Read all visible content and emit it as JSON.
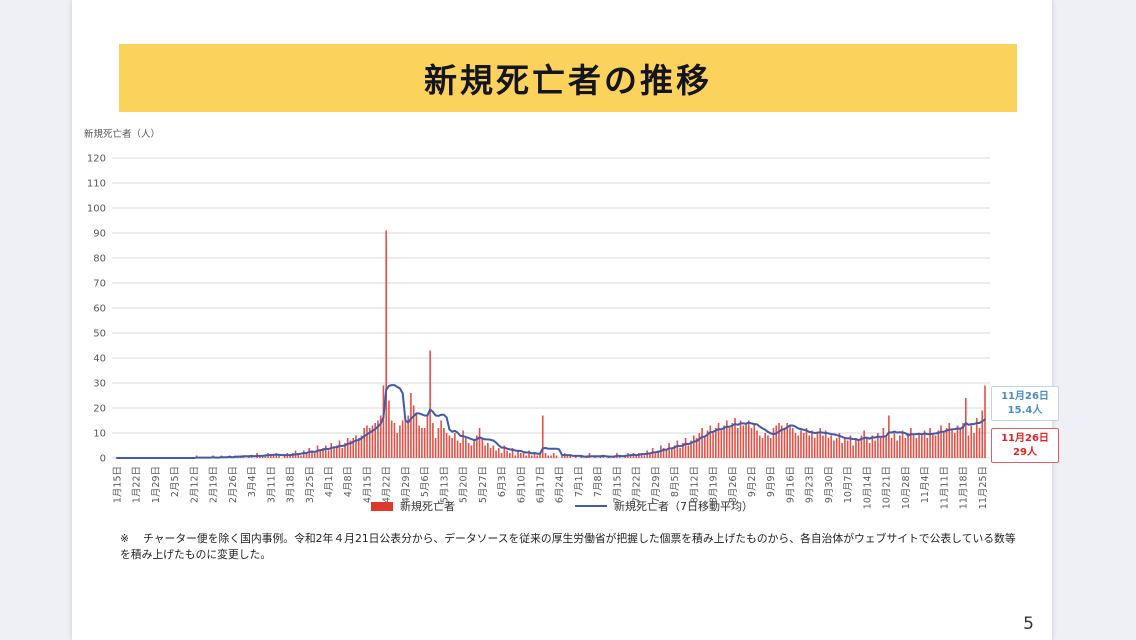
{
  "title": {
    "text": "新規死亡者の推移"
  },
  "y_axis_title": "新規死亡者（人）",
  "legend": {
    "bar_label": "新規死亡者",
    "line_label": "新規死亡者（7日移動平均）"
  },
  "annotations": {
    "average": {
      "date": "11月26日",
      "value": "15.4人",
      "color": "#4a8ec6"
    },
    "daily": {
      "date": "11月26日",
      "value": "29人",
      "color": "#e02424"
    }
  },
  "footnote": {
    "mark": "※",
    "text": "チャーター便を除く国内事例。令和2年４月21日公表分から、データソースを従来の厚生労働省が把握した個票を積み上げたものから、各自治体がウェブサイトで公表している数等を積み上げたものに変更した。"
  },
  "page": {
    "number": "5"
  },
  "colors": {
    "banner": "#fbd35c",
    "bar": "#e2382c",
    "line": "#3f5ba9",
    "grid": "#d9d9d9",
    "tick_text": "#595959"
  },
  "chart_data": {
    "type": "bar",
    "title": "新規死亡者の推移",
    "xlabel": "",
    "ylabel": "新規死亡者（人）",
    "ylim": [
      0,
      120
    ],
    "y_tick_step": 10,
    "grid": "horizontal",
    "legend_position": "bottom",
    "x_start_date": "1月15日",
    "x_end_date": "11月26日",
    "x_tick_labels": [
      "1月15日",
      "1月22日",
      "1月29日",
      "2月5日",
      "2月12日",
      "2月19日",
      "2月26日",
      "3月4日",
      "3月11日",
      "3月18日",
      "3月25日",
      "4月1日",
      "4月8日",
      "4月15日",
      "4月22日",
      "4月29日",
      "5月6日",
      "5月13日",
      "5月20日",
      "5月27日",
      "6月3日",
      "6月10日",
      "6月17日",
      "6月24日",
      "7月1日",
      "7月8日",
      "7月15日",
      "7月22日",
      "7月29日",
      "8月5日",
      "8月12日",
      "8月19日",
      "8月26日",
      "9月2日",
      "9月9日",
      "9月16日",
      "9月23日",
      "9月30日",
      "10月7日",
      "10月14日",
      "10月21日",
      "10月28日",
      "11月4日",
      "11月11日",
      "11月18日",
      "11月25日"
    ],
    "x_tick_interval_days": 7,
    "series": [
      {
        "name": "新規死亡者",
        "type": "bar",
        "color": "#e2382c",
        "values": [
          0,
          0,
          0,
          0,
          0,
          0,
          0,
          0,
          0,
          0,
          0,
          0,
          0,
          0,
          0,
          0,
          0,
          0,
          0,
          0,
          0,
          0,
          0,
          0,
          0,
          0,
          0,
          0,
          0,
          1,
          0,
          0,
          0,
          0,
          0,
          1,
          0,
          0,
          1,
          0,
          0,
          1,
          0,
          1,
          1,
          1,
          1,
          0,
          1,
          1,
          0,
          2,
          1,
          1,
          1,
          2,
          1,
          1,
          2,
          1,
          0,
          1,
          2,
          1,
          2,
          3,
          2,
          1,
          3,
          2,
          4,
          3,
          2,
          5,
          3,
          4,
          5,
          3,
          6,
          4,
          5,
          7,
          4,
          6,
          8,
          7,
          8,
          9,
          8,
          9,
          12,
          13,
          12,
          13,
          14,
          15,
          17,
          29,
          91,
          23,
          15,
          14,
          10,
          13,
          15,
          15,
          17,
          26,
          21,
          18,
          13,
          12,
          12,
          17,
          43,
          14,
          8,
          12,
          15,
          12,
          10,
          9,
          8,
          10,
          7,
          6,
          11,
          8,
          6,
          5,
          7,
          9,
          12,
          8,
          5,
          6,
          4,
          5,
          3,
          4,
          2,
          5,
          3,
          2,
          4,
          1,
          3,
          2,
          2,
          1,
          3,
          1,
          2,
          1,
          2,
          17,
          2,
          1,
          1,
          2,
          1,
          0,
          1,
          2,
          1,
          1,
          0,
          1,
          0,
          1,
          0,
          1,
          2,
          0,
          1,
          0,
          1,
          1,
          0,
          1,
          0,
          1,
          2,
          1,
          0,
          1,
          2,
          1,
          2,
          1,
          2,
          2,
          1,
          3,
          2,
          4,
          2,
          3,
          5,
          4,
          3,
          6,
          4,
          5,
          7,
          4,
          6,
          8,
          5,
          7,
          9,
          8,
          10,
          12,
          9,
          11,
          13,
          10,
          12,
          14,
          11,
          13,
          15,
          12,
          14,
          16,
          12,
          15,
          13,
          14,
          15,
          12,
          14,
          11,
          9,
          8,
          10,
          9,
          8,
          12,
          13,
          14,
          13,
          12,
          14,
          13,
          12,
          10,
          9,
          11,
          10,
          12,
          9,
          11,
          8,
          10,
          12,
          9,
          11,
          8,
          9,
          7,
          8,
          10,
          6,
          8,
          7,
          9,
          5,
          8,
          7,
          9,
          11,
          8,
          6,
          9,
          7,
          10,
          8,
          12,
          9,
          17,
          8,
          10,
          7,
          9,
          11,
          8,
          10,
          12,
          9,
          8,
          10,
          9,
          11,
          8,
          12,
          10,
          9,
          11,
          13,
          10,
          12,
          14,
          11,
          10,
          13,
          12,
          14,
          24,
          9,
          13,
          10,
          16,
          12,
          19,
          29
        ]
      },
      {
        "name": "新規死亡者（7日移動平均）",
        "type": "line",
        "color": "#3f5ba9",
        "derived": "7-day moving average of 新規死亡者",
        "last_value": 15.4
      }
    ],
    "annotations": [
      {
        "target": "line",
        "label": "11月26日 15.4人"
      },
      {
        "target": "bar",
        "label": "11月26日 29人"
      }
    ]
  }
}
